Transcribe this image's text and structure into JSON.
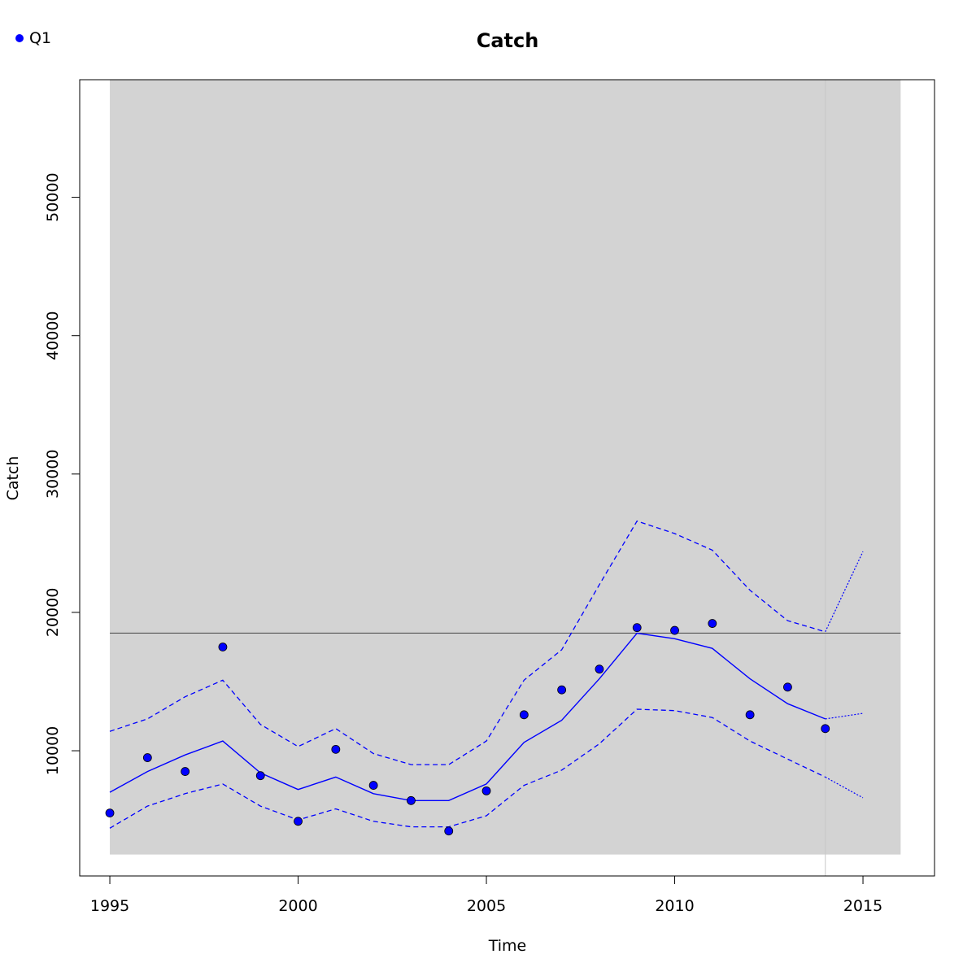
{
  "chart_data": {
    "type": "line",
    "title": "Catch",
    "xlabel": "Time",
    "ylabel": "Catch",
    "xlim": [
      1994.2,
      2016.9
    ],
    "ylim": [
      950,
      58500
    ],
    "x_ticks": [
      1995,
      2000,
      2005,
      2010,
      2015
    ],
    "y_ticks": [
      10000,
      20000,
      30000,
      40000,
      50000
    ],
    "x_tick_labels": [
      "1995",
      "2000",
      "2005",
      "2010",
      "2015"
    ],
    "y_tick_labels": [
      "10000",
      "20000",
      "30000",
      "40000",
      "50000"
    ],
    "legend": {
      "position": "top-left",
      "entries": [
        {
          "name": "Q1",
          "color": "#0000ff",
          "marker": "point"
        }
      ]
    },
    "background_band": {
      "x": [
        1995,
        2016
      ],
      "y": [
        2500,
        58500
      ],
      "color": "#d3d3d3"
    },
    "reference_line": {
      "y": 18500,
      "color": "#555555"
    },
    "vertical_line": {
      "x": 2014,
      "color": "#c8c8c8"
    },
    "colors": {
      "series": "#0000ff",
      "band": "#d3d3d3"
    },
    "observed": {
      "name": "Q1",
      "x": [
        1995,
        1996,
        1997,
        1998,
        1999,
        2000,
        2001,
        2002,
        2003,
        2004,
        2005,
        2006,
        2007,
        2008,
        2009,
        2010,
        2011,
        2012,
        2013,
        2014
      ],
      "y": [
        5500,
        9500,
        8500,
        17500,
        8200,
        4900,
        10100,
        7500,
        6400,
        4200,
        7100,
        12600,
        14400,
        15900,
        18900,
        18700,
        19200,
        12600,
        14600,
        11600
      ]
    },
    "fit": {
      "x": [
        1995,
        1996,
        1997,
        1998,
        1999,
        2000,
        2001,
        2002,
        2003,
        2004,
        2005,
        2006,
        2007,
        2008,
        2009,
        2010,
        2011,
        2012,
        2013,
        2014
      ],
      "y": [
        7000,
        8500,
        9700,
        10700,
        8400,
        7200,
        8100,
        6900,
        6400,
        6400,
        7600,
        10600,
        12200,
        15200,
        18500,
        18100,
        17400,
        15200,
        13400,
        12300
      ]
    },
    "fit_upper": {
      "x": [
        1995,
        1996,
        1997,
        1998,
        1999,
        2000,
        2001,
        2002,
        2003,
        2004,
        2005,
        2006,
        2007,
        2008,
        2009,
        2010,
        2011,
        2012,
        2013,
        2014
      ],
      "y": [
        11400,
        12300,
        13900,
        15100,
        11900,
        10300,
        11600,
        9800,
        9000,
        9000,
        10700,
        15100,
        17300,
        22000,
        26600,
        25700,
        24500,
        21600,
        19400,
        18600
      ]
    },
    "fit_lower": {
      "x": [
        1995,
        1996,
        1997,
        1998,
        1999,
        2000,
        2001,
        2002,
        2003,
        2004,
        2005,
        2006,
        2007,
        2008,
        2009,
        2010,
        2011,
        2012,
        2013,
        2014
      ],
      "y": [
        4400,
        6000,
        6900,
        7600,
        6000,
        5000,
        5800,
        4900,
        4500,
        4500,
        5300,
        7500,
        8600,
        10500,
        13000,
        12900,
        12400,
        10700,
        9400,
        8100
      ]
    },
    "forecast": {
      "x": [
        2014,
        2015
      ],
      "y": [
        12300,
        12700
      ]
    },
    "forecast_upper": {
      "x": [
        2014,
        2015
      ],
      "y": [
        18600,
        24400
      ]
    },
    "forecast_lower": {
      "x": [
        2014,
        2015
      ],
      "y": [
        8100,
        6600
      ]
    }
  }
}
